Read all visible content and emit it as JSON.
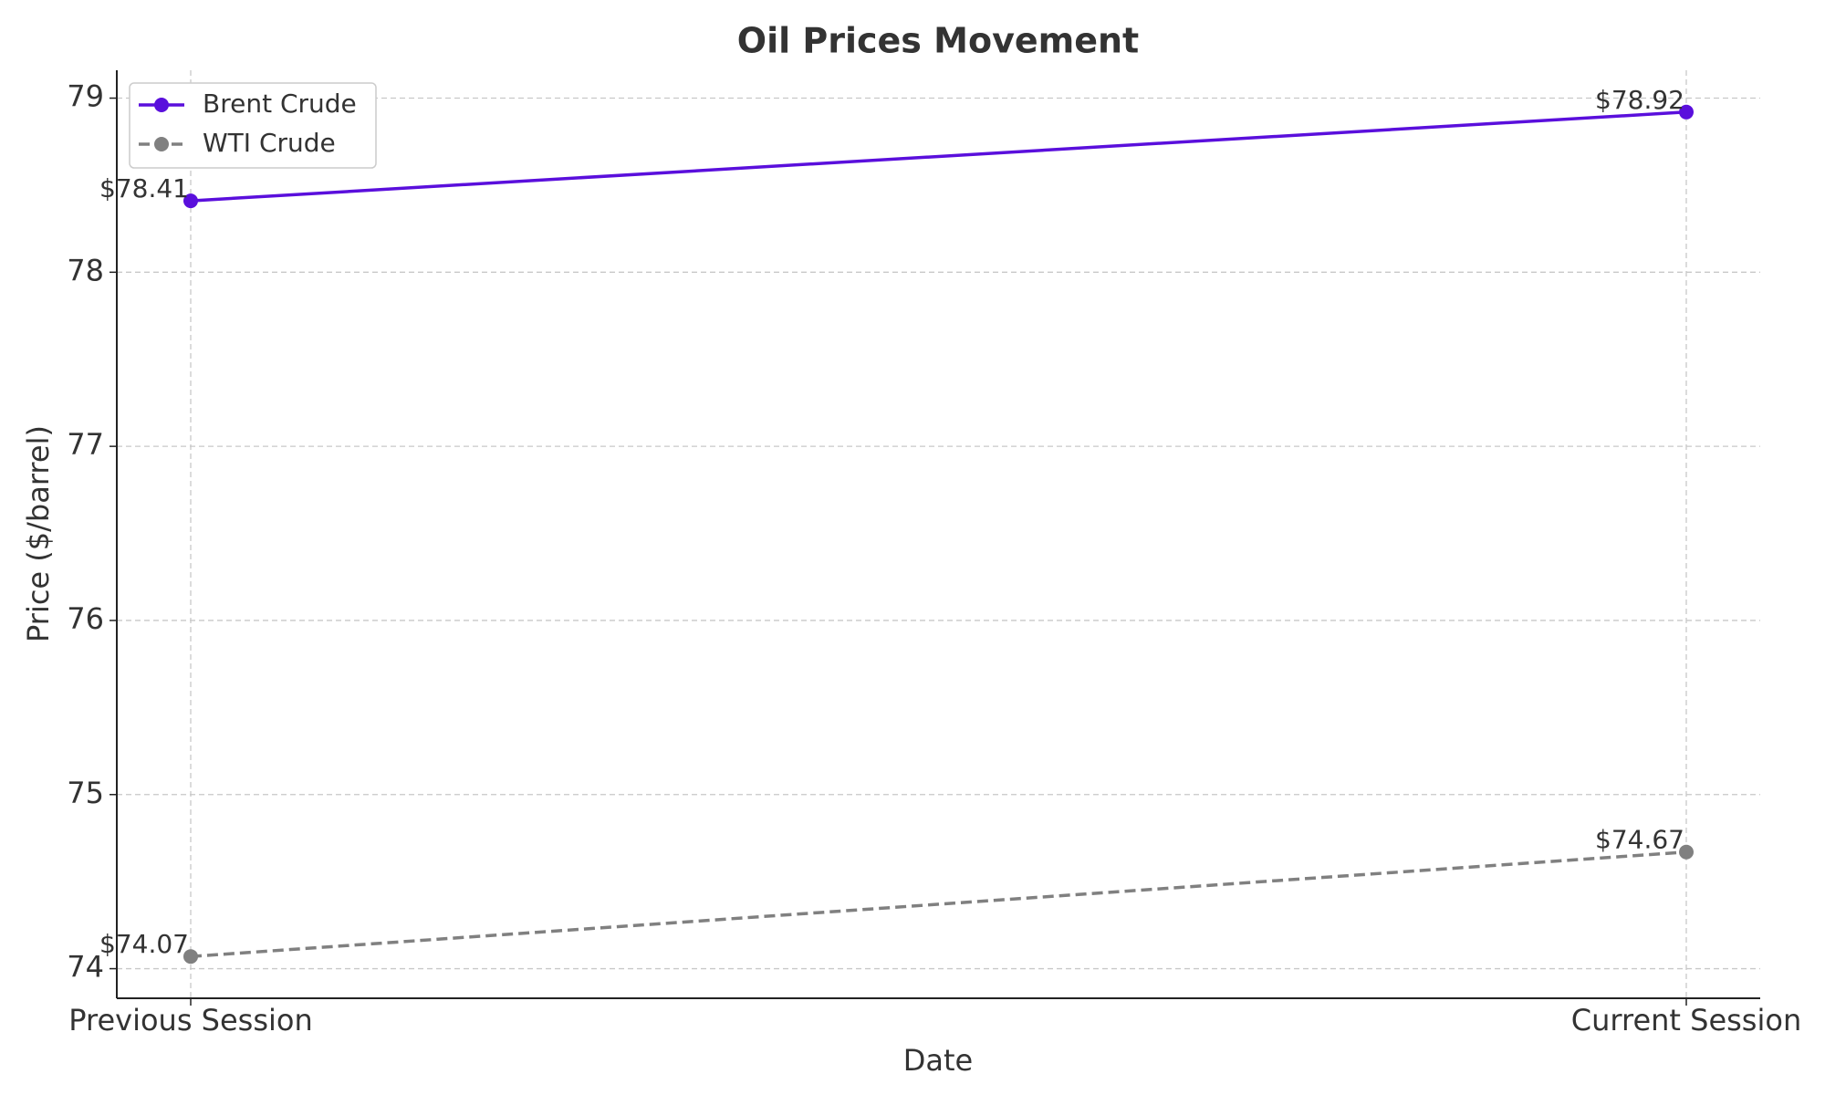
{
  "chart_data": {
    "type": "line",
    "title": "Oil Prices Movement",
    "x_label": "Date",
    "y_label": "Price ($/barrel)",
    "categories": [
      "Previous Session",
      "Current Session"
    ],
    "series": [
      {
        "name": "Brent Crude",
        "color": "#5a0fdc",
        "linestyle": "solid",
        "values": [
          78.41,
          78.92
        ],
        "value_labels": [
          "$78.41",
          "$78.92"
        ]
      },
      {
        "name": "WTI Crude",
        "color": "#808080",
        "linestyle": "dashed",
        "values": [
          74.07,
          74.67
        ],
        "value_labels": [
          "$74.07",
          "$74.67"
        ]
      }
    ],
    "ylim": [
      73.83,
      79.16
    ],
    "yticks": [
      74,
      75,
      76,
      77,
      78,
      79
    ],
    "grid": true,
    "legend": "upper left"
  }
}
